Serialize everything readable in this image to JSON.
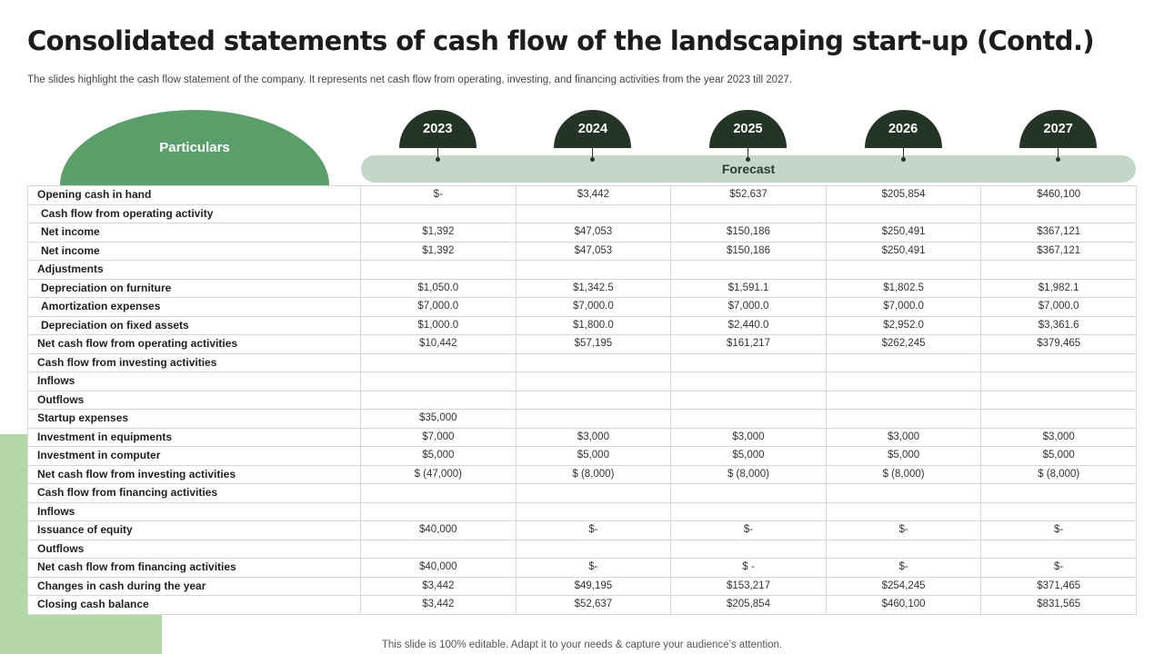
{
  "header": {
    "title": "Consolidated statements of cash flow of the landscaping start-up (Contd.)",
    "subtitle": "The slides highlight the cash flow statement of the company. It represents net cash flow from operating, investing, and financing activities from the year 2023 till 2027."
  },
  "table": {
    "particulars_label": "Particulars",
    "forecast_label": "Forecast",
    "years": [
      "2023",
      "2024",
      "2025",
      "2026",
      "2027"
    ],
    "rows": [
      {
        "label": "Opening cash in hand",
        "values": [
          "$-",
          "$3,442",
          "$52,637",
          "$205,854",
          "$460,100"
        ]
      },
      {
        "label": "Cash flow from operating activity",
        "indent": true,
        "values": [
          "",
          "",
          "",
          "",
          ""
        ]
      },
      {
        "label": "Net income",
        "indent": true,
        "values": [
          "$1,392",
          "$47,053",
          "$150,186",
          "$250,491",
          "$367,121"
        ]
      },
      {
        "label": "Net income",
        "indent": true,
        "values": [
          "$1,392",
          "$47,053",
          "$150,186",
          "$250,491",
          "$367,121"
        ]
      },
      {
        "label": "Adjustments",
        "values": [
          "",
          "",
          "",
          "",
          ""
        ]
      },
      {
        "label": "Depreciation on furniture",
        "indent": true,
        "values": [
          "$1,050.0",
          "$1,342.5",
          "$1,591.1",
          "$1,802.5",
          "$1,982.1"
        ]
      },
      {
        "label": "Amortization expenses",
        "indent": true,
        "values": [
          "$7,000.0",
          "$7,000.0",
          "$7,000.0",
          "$7,000.0",
          "$7,000.0"
        ]
      },
      {
        "label": "Depreciation on fixed assets",
        "indent": true,
        "values": [
          "$1,000.0",
          "$1,800.0",
          "$2,440.0",
          "$2,952.0",
          "$3,361.6"
        ]
      },
      {
        "label": "Net cash flow from operating activities",
        "values": [
          "$10,442",
          "$57,195",
          "$161,217",
          "$262,245",
          "$379,465"
        ]
      },
      {
        "label": "Cash flow from investing activities",
        "values": [
          "",
          "",
          "",
          "",
          ""
        ]
      },
      {
        "label": "Inflows",
        "values": [
          "",
          "",
          "",
          "",
          ""
        ]
      },
      {
        "label": "Outflows",
        "values": [
          "",
          "",
          "",
          "",
          ""
        ]
      },
      {
        "label": "Startup expenses",
        "values": [
          "$35,000",
          "",
          "",
          "",
          ""
        ]
      },
      {
        "label": "Investment in equipments",
        "values": [
          "$7,000",
          "$3,000",
          "$3,000",
          "$3,000",
          "$3,000"
        ]
      },
      {
        "label": "Investment in computer",
        "values": [
          "$5,000",
          "$5,000",
          "$5,000",
          "$5,000",
          "$5,000"
        ]
      },
      {
        "label": "Net cash flow from investing activities",
        "values": [
          "$ (47,000)",
          "$ (8,000)",
          "$ (8,000)",
          "$ (8,000)",
          "$ (8,000)"
        ]
      },
      {
        "label": "Cash flow from financing activities",
        "values": [
          "",
          "",
          "",
          "",
          ""
        ]
      },
      {
        "label": "Inflows",
        "values": [
          "",
          "",
          "",
          "",
          ""
        ]
      },
      {
        "label": "Issuance of equity",
        "values": [
          "$40,000",
          "$-",
          "$-",
          "$-",
          "$-"
        ]
      },
      {
        "label": "Outflows",
        "values": [
          "",
          "",
          "",
          "",
          ""
        ]
      },
      {
        "label": "Net cash flow from financing activities",
        "values": [
          "$40,000",
          "$-",
          "$ -",
          "$-",
          "$-"
        ]
      },
      {
        "label": "Changes in cash during the year",
        "values": [
          "$3,442",
          "$49,195",
          "$153,217",
          "$254,245",
          "$371,465"
        ]
      },
      {
        "label": "Closing cash balance",
        "values": [
          "$3,442",
          "$52,637",
          "$205,854",
          "$460,100",
          "$831,565"
        ]
      }
    ]
  },
  "footer": {
    "note": "This slide is 100% editable. Adapt it to your needs & capture your audience’s attention."
  },
  "colors": {
    "particulars_dome": "#5a9e6a",
    "year_dome": "#243527",
    "forecast_bar": "#c2d6c9",
    "accent_block": "#b3d7a6"
  }
}
